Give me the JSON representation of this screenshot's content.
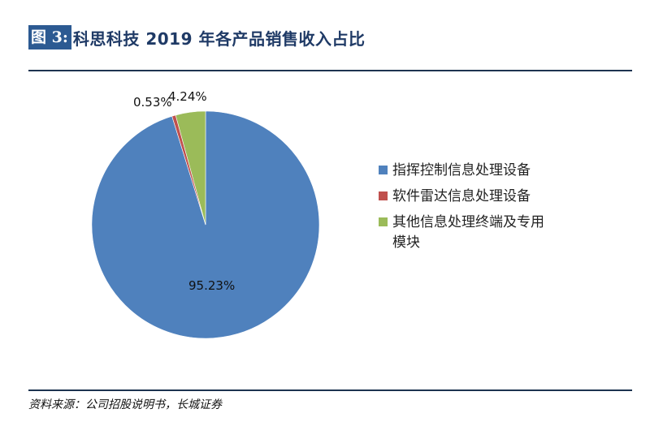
{
  "header": {
    "figure_label": "图 3:",
    "title": "科思科技 2019 年各产品销售收入占比"
  },
  "footer": {
    "source": "资料来源：公司招股说明书，长城证券"
  },
  "labels": {
    "slice0": "95.23%",
    "slice1": "0.53%",
    "slice2": "4.24%"
  },
  "legend": [
    {
      "label": "指挥控制信息处理设备",
      "color": "#4f81bd"
    },
    {
      "label": "软件雷达信息处理设备",
      "color": "#c0504d"
    },
    {
      "label": "其他信息处理终端及专用模块",
      "color": "#9bbb59"
    }
  ],
  "chart_data": {
    "type": "pie",
    "title": "科思科技 2019 年各产品销售收入占比",
    "categories": [
      "指挥控制信息处理设备",
      "软件雷达信息处理设备",
      "其他信息处理终端及专用模块"
    ],
    "values": [
      95.23,
      0.53,
      4.24
    ],
    "unit": "%",
    "colors": [
      "#4f81bd",
      "#c0504d",
      "#9bbb59"
    ],
    "legend_position": "right",
    "source": "资料来源：公司招股说明书，长城证券"
  }
}
